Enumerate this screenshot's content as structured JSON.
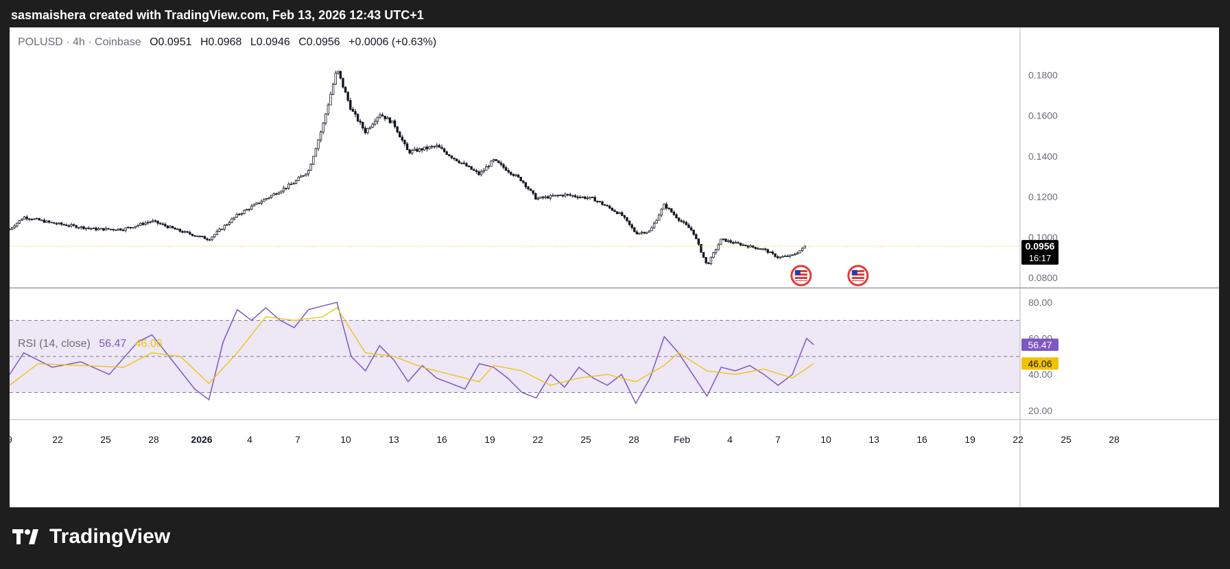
{
  "header": {
    "title": "sasmaishera created with TradingView.com, Feb 13, 2026 12:43 UTC+1"
  },
  "legend": {
    "symbol": "POLUSD · 4h · Coinbase",
    "o_label": "O",
    "o_value": "0.0951",
    "h_label": "H",
    "h_value": "0.0968",
    "l_label": "L",
    "l_value": "0.0946",
    "c_label": "C",
    "c_value": "0.0956",
    "change": "+0.0006 (+0.63%)"
  },
  "rsi_legend": {
    "label": "RSI (14, close)",
    "rsi_value": "56.47",
    "ma_value": "46.06"
  },
  "price_badge": {
    "value": "0.0956",
    "countdown": "16:17"
  },
  "rsi_badges": {
    "rsi": "56.47",
    "ma": "46.06"
  },
  "footer": {
    "brand": "TradingView"
  },
  "colors": {
    "up": "#ffffff",
    "down": "#131722",
    "rsi": "#7e57c2",
    "rsi_ma": "#f2c200",
    "band": "#ede7f6",
    "price_line": "#f2c200"
  },
  "chart_data": [
    {
      "type": "candlestick",
      "title": "POLUSD · 4h · Coinbase",
      "ylim": [
        0.075,
        0.19
      ],
      "y_ticks": [
        "0.1800",
        "0.1600",
        "0.1400",
        "0.1200",
        "0.1000",
        "0.0800"
      ],
      "x_ticks": [
        "9",
        "22",
        "25",
        "28",
        "2026",
        "4",
        "7",
        "10",
        "13",
        "16",
        "19",
        "22",
        "25",
        "28",
        "Feb",
        "4",
        "7",
        "10",
        "13",
        "16",
        "19",
        "22",
        "25",
        "28"
      ],
      "x_start": "2025-12-19",
      "x_end": "2026-02-28",
      "last_close": 0.0956,
      "close_path": [
        {
          "x": "2025-12-19",
          "y": 0.104
        },
        {
          "x": "2025-12-20",
          "y": 0.11
        },
        {
          "x": "2025-12-22",
          "y": 0.107
        },
        {
          "x": "2025-12-25",
          "y": 0.104
        },
        {
          "x": "2025-12-27",
          "y": 0.104
        },
        {
          "x": "2025-12-29",
          "y": 0.108
        },
        {
          "x": "2025-12-31",
          "y": 0.103
        },
        {
          "x": "2026-01-02",
          "y": 0.099
        },
        {
          "x": "2026-01-04",
          "y": 0.111
        },
        {
          "x": "2026-01-06",
          "y": 0.119
        },
        {
          "x": "2026-01-08",
          "y": 0.127
        },
        {
          "x": "2026-01-09",
          "y": 0.133
        },
        {
          "x": "2026-01-10",
          "y": 0.155
        },
        {
          "x": "2026-01-11",
          "y": 0.183
        },
        {
          "x": "2026-01-12",
          "y": 0.163
        },
        {
          "x": "2026-01-13",
          "y": 0.152
        },
        {
          "x": "2026-01-14",
          "y": 0.161
        },
        {
          "x": "2026-01-15",
          "y": 0.156
        },
        {
          "x": "2026-01-16",
          "y": 0.142
        },
        {
          "x": "2026-01-18",
          "y": 0.145
        },
        {
          "x": "2026-01-19",
          "y": 0.14
        },
        {
          "x": "2026-01-21",
          "y": 0.131
        },
        {
          "x": "2026-01-22",
          "y": 0.138
        },
        {
          "x": "2026-01-24",
          "y": 0.128
        },
        {
          "x": "2026-01-25",
          "y": 0.119
        },
        {
          "x": "2026-01-27",
          "y": 0.121
        },
        {
          "x": "2026-01-29",
          "y": 0.119
        },
        {
          "x": "2026-01-31",
          "y": 0.111
        },
        {
          "x": "2026-02-01",
          "y": 0.102
        },
        {
          "x": "2026-02-02",
          "y": 0.103
        },
        {
          "x": "2026-02-03",
          "y": 0.116
        },
        {
          "x": "2026-02-04",
          "y": 0.109
        },
        {
          "x": "2026-02-05",
          "y": 0.103
        },
        {
          "x": "2026-02-06",
          "y": 0.086
        },
        {
          "x": "2026-02-07",
          "y": 0.099
        },
        {
          "x": "2026-02-08",
          "y": 0.097
        },
        {
          "x": "2026-02-10",
          "y": 0.094
        },
        {
          "x": "2026-02-11",
          "y": 0.09
        },
        {
          "x": "2026-02-12",
          "y": 0.091
        },
        {
          "x": "2026-02-13",
          "y": 0.0956
        }
      ],
      "events": [
        {
          "x": "2026-02-13",
          "icon": "us-flag-icon"
        },
        {
          "x": "2026-02-17",
          "icon": "us-flag-icon"
        }
      ]
    },
    {
      "type": "line",
      "title": "RSI (14, close)",
      "ylim": [
        15,
        88
      ],
      "y_ticks": [
        "80.00",
        "60.00",
        "40.00",
        "20.00"
      ],
      "bands": [
        70,
        50,
        30
      ],
      "series": [
        {
          "name": "RSI",
          "values": [
            {
              "x": "2025-12-19",
              "y": 40
            },
            {
              "x": "2025-12-20",
              "y": 52
            },
            {
              "x": "2025-12-22",
              "y": 44
            },
            {
              "x": "2025-12-24",
              "y": 47
            },
            {
              "x": "2025-12-26",
              "y": 40
            },
            {
              "x": "2025-12-28",
              "y": 58
            },
            {
              "x": "2025-12-29",
              "y": 62
            },
            {
              "x": "2025-12-31",
              "y": 42
            },
            {
              "x": "2026-01-01",
              "y": 32
            },
            {
              "x": "2026-01-02",
              "y": 26
            },
            {
              "x": "2026-01-03",
              "y": 58
            },
            {
              "x": "2026-01-04",
              "y": 76
            },
            {
              "x": "2026-01-05",
              "y": 70
            },
            {
              "x": "2026-01-06",
              "y": 77
            },
            {
              "x": "2026-01-07",
              "y": 70
            },
            {
              "x": "2026-01-08",
              "y": 66
            },
            {
              "x": "2026-01-09",
              "y": 76
            },
            {
              "x": "2026-01-10",
              "y": 78
            },
            {
              "x": "2026-01-11",
              "y": 80
            },
            {
              "x": "2026-01-12",
              "y": 50
            },
            {
              "x": "2026-01-13",
              "y": 42
            },
            {
              "x": "2026-01-14",
              "y": 56
            },
            {
              "x": "2026-01-15",
              "y": 48
            },
            {
              "x": "2026-01-16",
              "y": 36
            },
            {
              "x": "2026-01-17",
              "y": 45
            },
            {
              "x": "2026-01-18",
              "y": 38
            },
            {
              "x": "2026-01-20",
              "y": 32
            },
            {
              "x": "2026-01-21",
              "y": 46
            },
            {
              "x": "2026-01-22",
              "y": 44
            },
            {
              "x": "2026-01-23",
              "y": 38
            },
            {
              "x": "2026-01-24",
              "y": 30
            },
            {
              "x": "2026-01-25",
              "y": 27
            },
            {
              "x": "2026-01-26",
              "y": 40
            },
            {
              "x": "2026-01-27",
              "y": 33
            },
            {
              "x": "2026-01-28",
              "y": 44
            },
            {
              "x": "2026-01-29",
              "y": 38
            },
            {
              "x": "2026-01-30",
              "y": 34
            },
            {
              "x": "2026-01-31",
              "y": 40
            },
            {
              "x": "2026-02-01",
              "y": 24
            },
            {
              "x": "2026-02-02",
              "y": 38
            },
            {
              "x": "2026-02-03",
              "y": 61
            },
            {
              "x": "2026-02-04",
              "y": 52
            },
            {
              "x": "2026-02-05",
              "y": 40
            },
            {
              "x": "2026-02-06",
              "y": 28
            },
            {
              "x": "2026-02-07",
              "y": 44
            },
            {
              "x": "2026-02-08",
              "y": 42
            },
            {
              "x": "2026-02-09",
              "y": 45
            },
            {
              "x": "2026-02-10",
              "y": 40
            },
            {
              "x": "2026-02-11",
              "y": 34
            },
            {
              "x": "2026-02-12",
              "y": 40
            },
            {
              "x": "2026-02-13",
              "y": 60
            },
            {
              "x": "2026-02-13T12:00",
              "y": 56.47
            }
          ]
        },
        {
          "name": "RSI-based MA",
          "values": [
            {
              "x": "2025-12-19",
              "y": 34
            },
            {
              "x": "2025-12-21",
              "y": 46
            },
            {
              "x": "2025-12-24",
              "y": 45
            },
            {
              "x": "2025-12-27",
              "y": 44
            },
            {
              "x": "2025-12-29",
              "y": 52
            },
            {
              "x": "2025-12-31",
              "y": 50
            },
            {
              "x": "2026-01-02",
              "y": 35
            },
            {
              "x": "2026-01-04",
              "y": 52
            },
            {
              "x": "2026-01-06",
              "y": 72
            },
            {
              "x": "2026-01-08",
              "y": 70
            },
            {
              "x": "2026-01-10",
              "y": 72
            },
            {
              "x": "2026-01-11",
              "y": 77
            },
            {
              "x": "2026-01-13",
              "y": 52
            },
            {
              "x": "2026-01-15",
              "y": 50
            },
            {
              "x": "2026-01-17",
              "y": 44
            },
            {
              "x": "2026-01-19",
              "y": 40
            },
            {
              "x": "2026-01-21",
              "y": 36
            },
            {
              "x": "2026-01-22",
              "y": 45
            },
            {
              "x": "2026-01-24",
              "y": 42
            },
            {
              "x": "2026-01-26",
              "y": 34
            },
            {
              "x": "2026-01-28",
              "y": 38
            },
            {
              "x": "2026-01-30",
              "y": 40
            },
            {
              "x": "2026-02-01",
              "y": 36
            },
            {
              "x": "2026-02-03",
              "y": 45
            },
            {
              "x": "2026-02-04",
              "y": 52
            },
            {
              "x": "2026-02-06",
              "y": 42
            },
            {
              "x": "2026-02-08",
              "y": 40
            },
            {
              "x": "2026-02-10",
              "y": 43
            },
            {
              "x": "2026-02-12",
              "y": 38
            },
            {
              "x": "2026-02-13T12:00",
              "y": 46.06
            }
          ]
        }
      ]
    }
  ]
}
